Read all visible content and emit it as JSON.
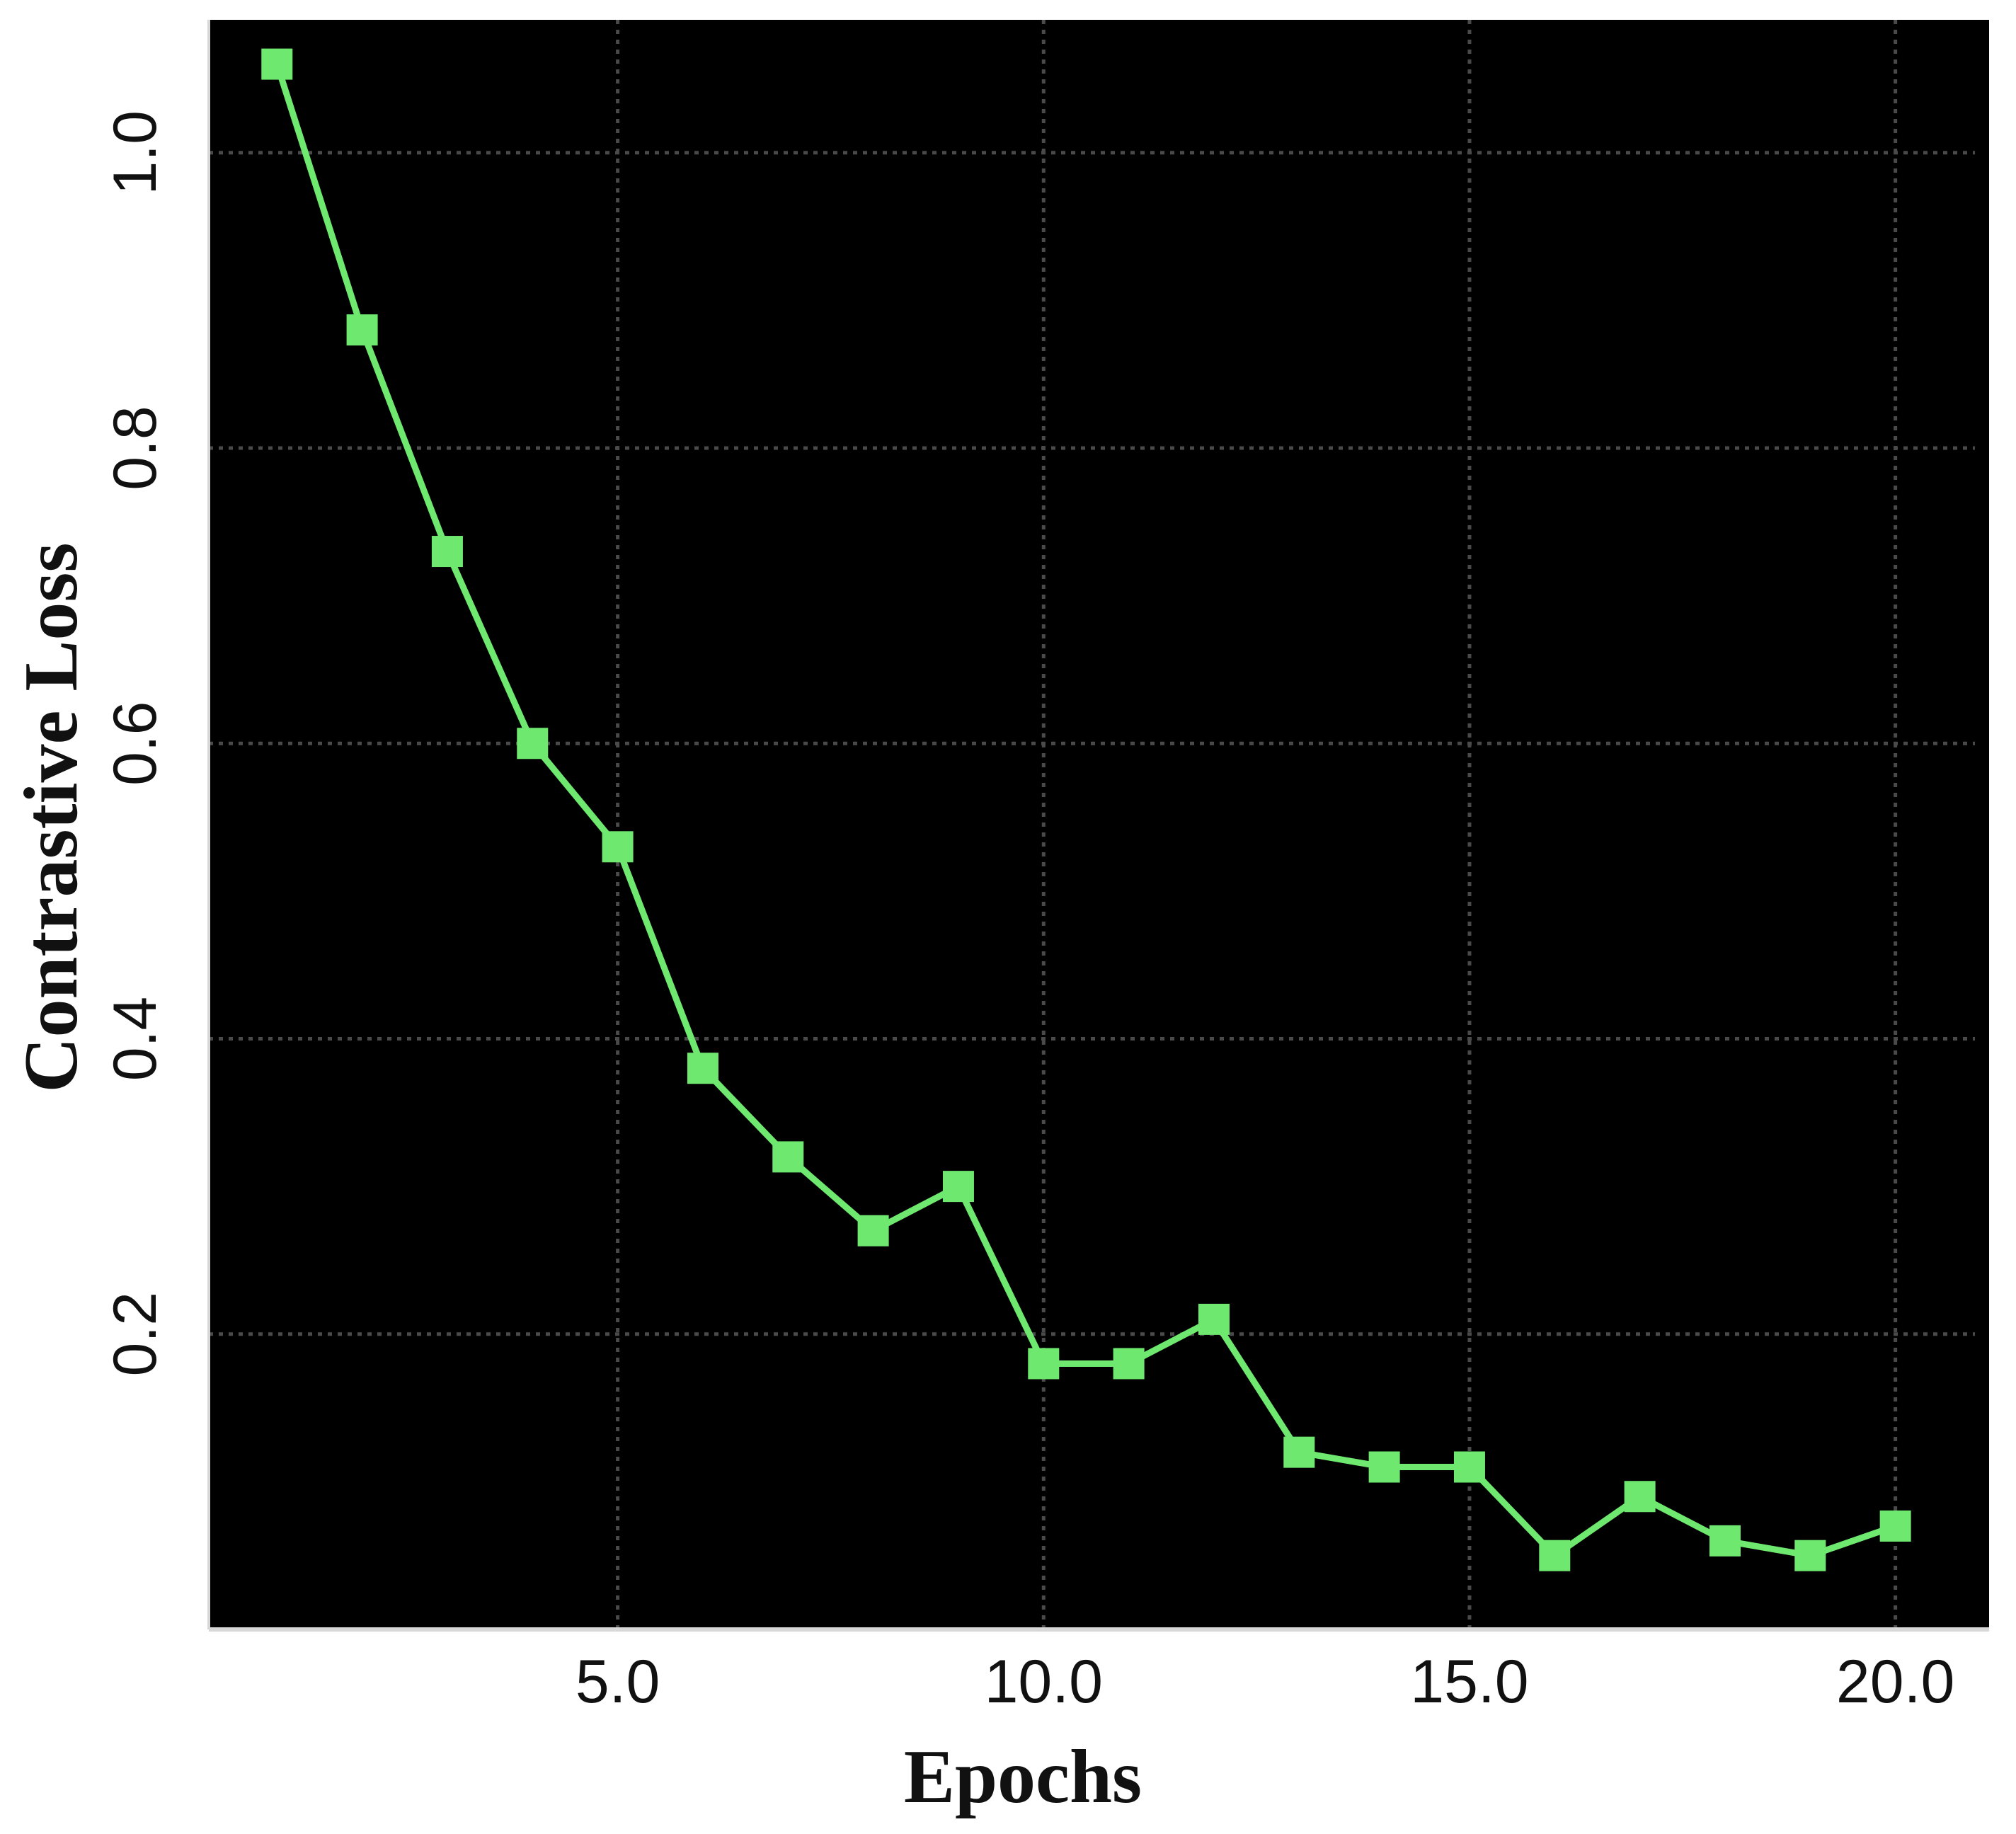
{
  "chart_data": {
    "type": "line",
    "title": "",
    "xlabel": "Epochs",
    "ylabel": "Contrastive Loss",
    "xlim": [
      0.2,
      21.1
    ],
    "ylim": [
      0.0,
      1.09
    ],
    "x_ticks": [
      5,
      10,
      15,
      20
    ],
    "x_tick_labels": [
      "5.0",
      "10.0",
      "15.0",
      "20.0"
    ],
    "y_ticks": [
      0.2,
      0.4,
      0.6,
      0.8,
      1.0
    ],
    "y_tick_labels": [
      "0.2",
      "0.4",
      "0.6",
      "0.8",
      "1.0"
    ],
    "grid": true,
    "legend": "none",
    "colors": {
      "plot_background": "#000000",
      "series": "#6ee86e",
      "grid": "#4a4a4a",
      "axis": "#d8d8d8"
    },
    "series": [
      {
        "marker": "square",
        "x": [
          1,
          2,
          3,
          4,
          5,
          6,
          7,
          8,
          9,
          10,
          11,
          12,
          13,
          14,
          15,
          16,
          17,
          18,
          19,
          20
        ],
        "y": [
          1.06,
          0.88,
          0.73,
          0.6,
          0.53,
          0.38,
          0.32,
          0.27,
          0.3,
          0.18,
          0.18,
          0.21,
          0.12,
          0.11,
          0.11,
          0.05,
          0.09,
          0.06,
          0.05,
          0.07
        ]
      }
    ]
  }
}
